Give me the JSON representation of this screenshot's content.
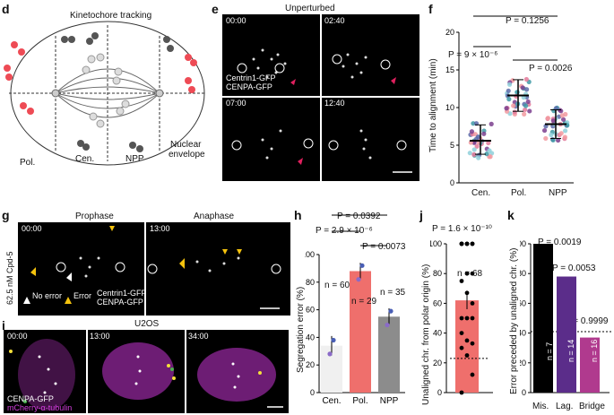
{
  "panels": {
    "d": {
      "letter": "d",
      "title": "Kinetochore tracking",
      "labels": {
        "pol": "Pol.",
        "cen": "Cen.",
        "npp": "NPP",
        "envelope_line1": "Nuclear",
        "envelope_line2": "envelope"
      }
    },
    "e": {
      "letter": "e",
      "title": "Unperturbed",
      "times": [
        "00:00",
        "02:40",
        "07:00",
        "12:40"
      ],
      "legend1": "Centrin1-GFP",
      "legend2": "CENPA-GFP"
    },
    "f": {
      "letter": "f",
      "ylabel": "Time to alignment (min)",
      "p_top": "P = 0.1256",
      "p_left": "P = 9 × 10⁻⁶",
      "p_right": "P = 0.0026",
      "categories": [
        "Cen.",
        "Pol.",
        "NPP"
      ]
    },
    "g": {
      "letter": "g",
      "side_label": "62.5 nM Cpd-5",
      "title_left": "Prophase",
      "title_right": "Anaphase",
      "time_left": "00:00",
      "time_right": "13:00",
      "legend_noerror": "No error",
      "legend_error": "Error",
      "legend1": "Centrin1-GFP",
      "legend2": "CENPA-GFP"
    },
    "h": {
      "letter": "h",
      "ylabel": "Segregation error (%)",
      "p_top": "P = 0.0392",
      "p_left": "P = 2.9 × 10⁻⁶",
      "p_right": "P = 0.0073",
      "n_labels": [
        "n = 60",
        "n = 29",
        "n = 35"
      ]
    },
    "i": {
      "letter": "i",
      "title": "U2OS",
      "times": [
        "00:00",
        "13:00",
        "34:00"
      ],
      "legend1": "CENPA-GFP",
      "legend2": "mCherry-α-tubulin"
    },
    "j": {
      "letter": "j",
      "ylabel": "Unaligned chr. from polar origin (%)",
      "p_top": "P = 1.6 × 10⁻¹⁰",
      "n_label": "n = 68"
    },
    "k": {
      "letter": "k",
      "ylabel": "Error preceded by unaligned chr. (%)",
      "p_labels": [
        "P = 0.0019",
        "P = 0.0053",
        "P = 0.9999"
      ],
      "n_labels": [
        "n = 7",
        "n = 14",
        "n = 16"
      ],
      "categories": [
        "Mis.",
        "Lag.",
        "Bridge"
      ]
    }
  },
  "chart_data": [
    {
      "type": "scatter",
      "panel": "f",
      "categories": [
        "Cen.",
        "Pol.",
        "NPP"
      ],
      "mean": [
        5.6,
        11.6,
        7.8
      ],
      "sd_low": [
        3.8,
        9.5,
        5.9
      ],
      "sd_high": [
        7.7,
        13.7,
        9.7
      ],
      "ylim": [
        0,
        20
      ],
      "yticks": [
        0,
        5,
        10,
        15,
        20
      ],
      "ylabel": "Time to alignment (min)"
    },
    {
      "type": "bar",
      "panel": "h",
      "categories": [
        "Cen.",
        "Pol.",
        "NPP"
      ],
      "values": [
        34,
        88,
        55
      ],
      "errors": [
        7,
        6,
        6
      ],
      "colors": [
        "#f0f0f0",
        "#ef6f6c",
        "#8c8c8c"
      ],
      "ylim": [
        0,
        100
      ],
      "yticks": [
        0,
        20,
        40,
        60,
        80,
        100
      ],
      "ylabel": "Segregation error (%)"
    },
    {
      "type": "bar",
      "panel": "j",
      "categories": [
        ""
      ],
      "values": [
        62
      ],
      "errors": [
        6
      ],
      "points": [
        100,
        100,
        100,
        100,
        100,
        100,
        100,
        80,
        80,
        75,
        67,
        60,
        50,
        50,
        50,
        40,
        35,
        33,
        30,
        25,
        12,
        0
      ],
      "reference_line": 23,
      "ylim": [
        0,
        100
      ],
      "yticks": [
        0,
        20,
        40,
        60,
        80,
        100
      ],
      "ylabel": "Unaligned chr. from polar origin (%)"
    },
    {
      "type": "bar",
      "panel": "k",
      "categories": [
        "Mis.",
        "Lag.",
        "Bridge"
      ],
      "values": [
        100,
        78,
        37
      ],
      "colors": [
        "#000000",
        "#5b2d8a",
        "#b03a8e"
      ],
      "reference_line": 41,
      "ylim": [
        0,
        100
      ],
      "yticks": [
        0,
        20,
        40,
        60,
        80,
        100
      ],
      "ylabel": "Error preceded by unaligned chr. (%)"
    }
  ]
}
